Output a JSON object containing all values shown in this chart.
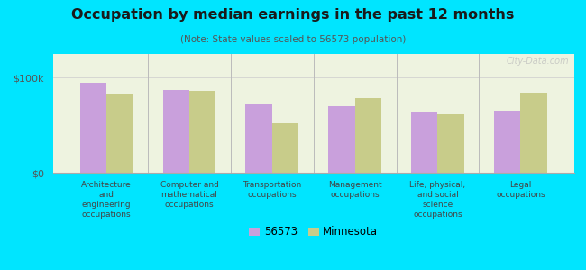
{
  "title": "Occupation by median earnings in the past 12 months",
  "subtitle": "(Note: State values scaled to 56573 population)",
  "categories": [
    "Architecture\nand\nengineering\noccupations",
    "Computer and\nmathematical\noccupations",
    "Transportation\noccupations",
    "Management\noccupations",
    "Life, physical,\nand social\nscience\noccupations",
    "Legal\noccupations"
  ],
  "values_56573": [
    95000,
    87000,
    72000,
    70000,
    63000,
    65000
  ],
  "values_minnesota": [
    82000,
    86000,
    52000,
    79000,
    62000,
    84000
  ],
  "color_56573": "#c9a0dc",
  "color_minnesota": "#c8cc8a",
  "background_outer": "#00e5ff",
  "yticks": [
    0,
    100000
  ],
  "ytick_labels": [
    "$0",
    "$100k"
  ],
  "legend_label_56573": "56573",
  "legend_label_minnesota": "Minnesota",
  "bar_width": 0.32,
  "watermark": "City-Data.com"
}
